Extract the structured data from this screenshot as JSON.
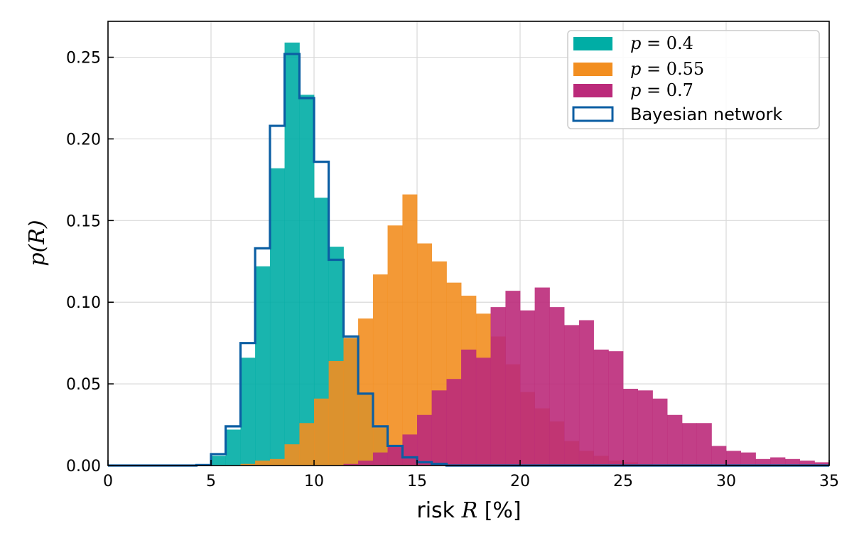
{
  "chart_data": {
    "type": "bar",
    "xlabel": "risk R [%]",
    "xlabel_parts": {
      "prefix": "risk ",
      "var": "R",
      "suffix": " [%]"
    },
    "ylabel": "p(R)",
    "xlim": [
      0,
      35
    ],
    "ylim": [
      0,
      0.272
    ],
    "xticks": [
      "0",
      "5",
      "10",
      "15",
      "20",
      "25",
      "30",
      "35"
    ],
    "yticks": [
      "0.00",
      "0.05",
      "0.10",
      "0.15",
      "0.20",
      "0.25"
    ],
    "grid": true,
    "legend_position": "top-right",
    "bin_edges": [
      0.0,
      0.71,
      1.43,
      2.14,
      2.86,
      3.57,
      4.29,
      5.0,
      5.71,
      6.43,
      7.14,
      7.86,
      8.57,
      9.29,
      10.0,
      10.71,
      11.43,
      12.14,
      12.86,
      13.57,
      14.29,
      15.0,
      15.71,
      16.43,
      17.14,
      17.86,
      18.57,
      19.29,
      20.0,
      20.71,
      21.43,
      22.14,
      22.86,
      23.57,
      24.29,
      25.0,
      25.71,
      26.43,
      27.14,
      27.86,
      28.57,
      29.29,
      30.0,
      30.71,
      31.43,
      32.14,
      32.86,
      33.57,
      34.29,
      35.0
    ],
    "series": [
      {
        "name": "p = 0.4",
        "label_var": "p",
        "label_val": "0.4",
        "color": "#00ada5",
        "values": [
          0,
          0,
          0,
          0,
          0,
          0,
          0.0005,
          0.006,
          0.022,
          0.066,
          0.122,
          0.182,
          0.259,
          0.227,
          0.164,
          0.134,
          0.078,
          0.044,
          0.023,
          0.012,
          0.005,
          0.002,
          0.001,
          0.0005,
          0.0002,
          0,
          0,
          0,
          0,
          0,
          0,
          0,
          0,
          0,
          0,
          0,
          0,
          0,
          0,
          0,
          0,
          0,
          0,
          0,
          0,
          0,
          0,
          0,
          0
        ]
      },
      {
        "name": "p = 0.55",
        "label_var": "p",
        "label_val": "0.55",
        "color": "#f28e20",
        "values": [
          0,
          0,
          0,
          0,
          0,
          0,
          0,
          0,
          0,
          0.001,
          0.003,
          0.004,
          0.013,
          0.026,
          0.041,
          0.064,
          0.078,
          0.09,
          0.117,
          0.147,
          0.166,
          0.136,
          0.125,
          0.112,
          0.104,
          0.093,
          0.079,
          0.062,
          0.045,
          0.035,
          0.027,
          0.015,
          0.009,
          0.006,
          0.003,
          0.002,
          0.001,
          0.0005,
          0,
          0,
          0,
          0,
          0,
          0,
          0,
          0,
          0,
          0,
          0
        ]
      },
      {
        "name": "p = 0.7",
        "label_var": "p",
        "label_val": "0.7",
        "color": "#bb2a7a",
        "values": [
          0,
          0,
          0,
          0,
          0,
          0,
          0,
          0,
          0,
          0,
          0,
          0,
          0,
          0,
          0,
          0.0002,
          0.001,
          0.003,
          0.008,
          0.012,
          0.019,
          0.031,
          0.046,
          0.053,
          0.071,
          0.066,
          0.097,
          0.107,
          0.095,
          0.109,
          0.097,
          0.086,
          0.089,
          0.071,
          0.07,
          0.047,
          0.046,
          0.041,
          0.031,
          0.026,
          0.026,
          0.012,
          0.009,
          0.008,
          0.004,
          0.005,
          0.004,
          0.003,
          0.002
        ]
      },
      {
        "name": "Bayesian network",
        "color": "#0b5ea3",
        "style": "step",
        "values": [
          0,
          0,
          0,
          0,
          0,
          0,
          0.0003,
          0.007,
          0.024,
          0.075,
          0.133,
          0.208,
          0.252,
          0.225,
          0.186,
          0.126,
          0.079,
          0.044,
          0.024,
          0.012,
          0.005,
          0.002,
          0.001,
          0,
          0,
          0,
          0,
          0,
          0,
          0,
          0,
          0,
          0,
          0,
          0,
          0,
          0,
          0,
          0,
          0,
          0,
          0,
          0,
          0,
          0,
          0,
          0,
          0,
          0
        ]
      }
    ]
  }
}
